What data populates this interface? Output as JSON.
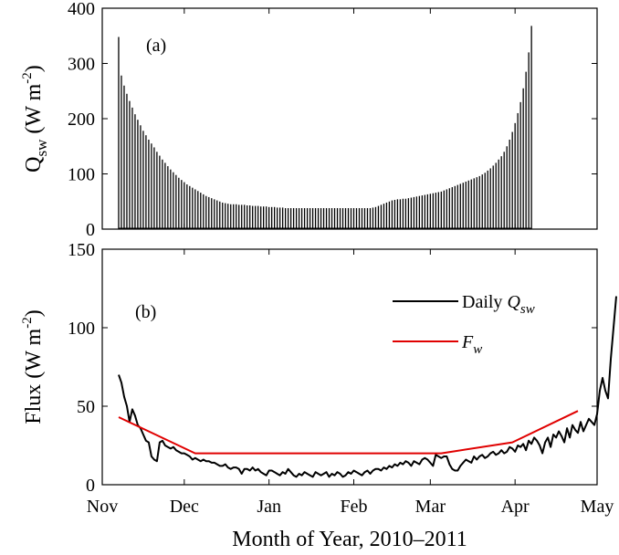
{
  "figure": {
    "xlabel": "Month of Year, 2010–2011"
  },
  "chart_data": [
    {
      "type": "bar",
      "panel_label": "(a)",
      "ylabel": {
        "main": "Q",
        "sub": "sw",
        "unit_pre": " (W m",
        "sup": "-2",
        "unit_post": ")"
      },
      "ylim": [
        0,
        400
      ],
      "yticks": [
        0,
        100,
        200,
        300,
        400
      ],
      "xlim": [
        0,
        181
      ],
      "x_ticks": [
        {
          "label": "Nov",
          "day": 0
        },
        {
          "label": "Dec",
          "day": 30
        },
        {
          "label": "Jan",
          "day": 61
        },
        {
          "label": "Feb",
          "day": 92
        },
        {
          "label": "Mar",
          "day": 120
        },
        {
          "label": "Apr",
          "day": 151
        },
        {
          "label": "May",
          "day": 181
        }
      ],
      "series": [
        {
          "description": "hourly shortwave radiation; daily peak values (diurnal cycle drops to 0 each night)",
          "x_start_day": 6,
          "daily_peaks": [
            348,
            278,
            260,
            245,
            232,
            220,
            208,
            198,
            188,
            178,
            170,
            162,
            155,
            148,
            140,
            133,
            126,
            120,
            114,
            108,
            103,
            98,
            93,
            89,
            85,
            81,
            78,
            75,
            72,
            69,
            66,
            63,
            60,
            58,
            56,
            54,
            52,
            50,
            48,
            47,
            46,
            45,
            45,
            45,
            44,
            44,
            44,
            43,
            43,
            42,
            42,
            42,
            41,
            41,
            41,
            40,
            40,
            40,
            39,
            39,
            39,
            38,
            38,
            38,
            38,
            38,
            38,
            38,
            38,
            38,
            38,
            38,
            38,
            38,
            38,
            38,
            38,
            38,
            38,
            38,
            38,
            38,
            38,
            38,
            38,
            38,
            38,
            38,
            38,
            38,
            38,
            38,
            38,
            39,
            40,
            42,
            44,
            46,
            48,
            50,
            52,
            53,
            54,
            54,
            55,
            55,
            56,
            57,
            58,
            59,
            60,
            61,
            62,
            63,
            64,
            65,
            66,
            67,
            68,
            70,
            72,
            74,
            76,
            78,
            80,
            82,
            84,
            86,
            88,
            90,
            92,
            94,
            96,
            99,
            102,
            106,
            110,
            115,
            120,
            126,
            132,
            140,
            150,
            162,
            176,
            192,
            210,
            230,
            255,
            285,
            320,
            368
          ]
        }
      ]
    },
    {
      "type": "line",
      "panel_label": "(b)",
      "ylabel": {
        "main": "Flux",
        "unit_pre": " (W m",
        "sup": "-2",
        "unit_post": ")"
      },
      "ylim": [
        0,
        150
      ],
      "yticks": [
        0,
        50,
        100,
        150
      ],
      "xlim": [
        0,
        181
      ],
      "x_ticks": [
        {
          "label": "Nov",
          "day": 0
        },
        {
          "label": "Dec",
          "day": 30
        },
        {
          "label": "Jan",
          "day": 61
        },
        {
          "label": "Feb",
          "day": 92
        },
        {
          "label": "Mar",
          "day": 120
        },
        {
          "label": "Apr",
          "day": 151
        },
        {
          "label": "May",
          "day": 181
        }
      ],
      "series": [
        {
          "name": "Daily Q_sw",
          "legend": {
            "prefix": "Daily ",
            "main": "Q",
            "sub": "sw"
          },
          "color": "#000000",
          "x_start_day": 6,
          "values": [
            70,
            65,
            56,
            50,
            40,
            48,
            44,
            38,
            36,
            32,
            28,
            27,
            18,
            16,
            15,
            27,
            28,
            25,
            24,
            23,
            24,
            22,
            21,
            20,
            20,
            19,
            18,
            16,
            17,
            16,
            15,
            16,
            15,
            15,
            14,
            14,
            13,
            12,
            12,
            13,
            11,
            10,
            11,
            11,
            10,
            7,
            10,
            10,
            9,
            11,
            9,
            10,
            8,
            7,
            6,
            9,
            9,
            8,
            7,
            6,
            8,
            7,
            10,
            8,
            6,
            5,
            7,
            6,
            8,
            7,
            6,
            5,
            8,
            7,
            6,
            7,
            8,
            5,
            7,
            6,
            8,
            7,
            5,
            6,
            8,
            7,
            9,
            8,
            7,
            6,
            8,
            9,
            7,
            9,
            10,
            10,
            9,
            11,
            10,
            12,
            11,
            13,
            12,
            14,
            13,
            15,
            14,
            12,
            15,
            14,
            13,
            16,
            17,
            16,
            14,
            12,
            19,
            18,
            17,
            18,
            18,
            13,
            10,
            9,
            9,
            12,
            14,
            16,
            15,
            14,
            18,
            16,
            18,
            19,
            17,
            18,
            20,
            21,
            19,
            20,
            22,
            20,
            21,
            24,
            23,
            21,
            25,
            24,
            26,
            22,
            28,
            26,
            30,
            28,
            25,
            20,
            27,
            30,
            24,
            32,
            30,
            34,
            31,
            27,
            36,
            30,
            38,
            35,
            33,
            40,
            34,
            38,
            42,
            40,
            38,
            45,
            60,
            68,
            60,
            55,
            80,
            100,
            120
          ]
        },
        {
          "name": "F_w",
          "legend": {
            "prefix": "",
            "main": "F",
            "sub": "w"
          },
          "color": "#e00000",
          "x": [
            6,
            34,
            64,
            94,
            124,
            150,
            174
          ],
          "values": [
            43,
            20,
            20,
            20,
            20,
            27,
            47
          ]
        }
      ]
    }
  ]
}
